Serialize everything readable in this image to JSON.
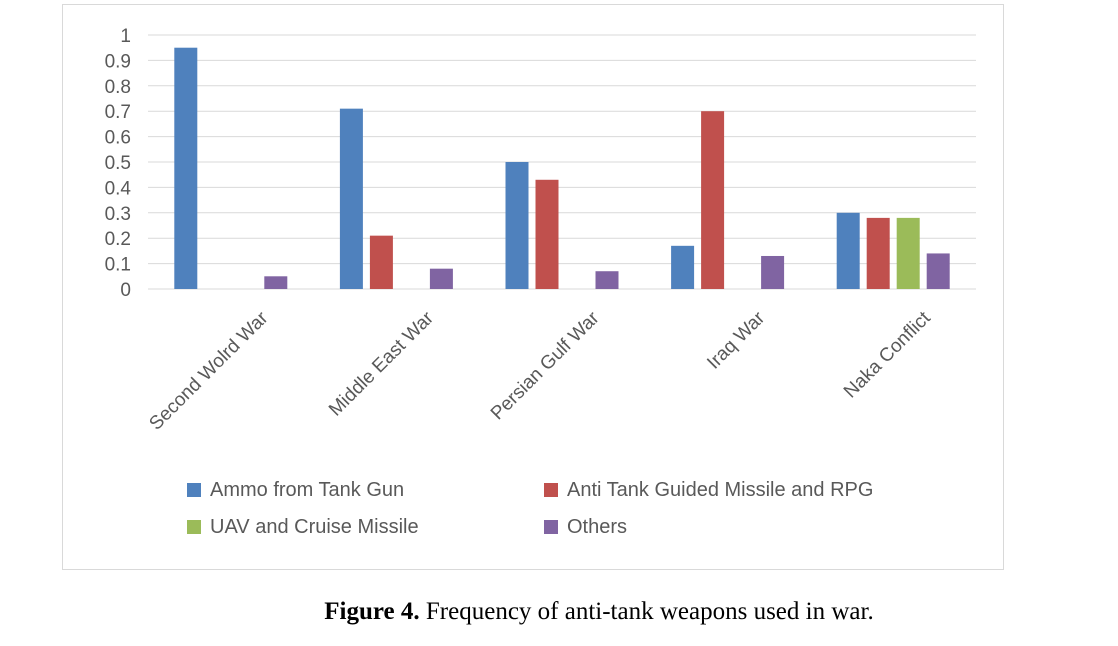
{
  "chart_data": {
    "type": "bar",
    "title": "",
    "xlabel": "",
    "ylabel": "",
    "ylim": [
      0,
      1
    ],
    "yticks": [
      "0",
      "0.1",
      "0.2",
      "0.3",
      "0.4",
      "0.5",
      "0.6",
      "0.7",
      "0.8",
      "0.9",
      "1"
    ],
    "grid": true,
    "legend_position": "bottom",
    "categories": [
      "Second Wolrd War",
      "Middle East War",
      "Persian Gulf War",
      "Iraq War",
      "Naka Conflict"
    ],
    "series": [
      {
        "name": "Ammo from Tank Gun",
        "color": "#4f81bd",
        "values": [
          0.95,
          0.71,
          0.5,
          0.17,
          0.3
        ]
      },
      {
        "name": "Anti Tank Guided Missile and RPG",
        "color": "#c0504d",
        "values": [
          0,
          0.21,
          0.43,
          0.7,
          0.28
        ]
      },
      {
        "name": "UAV and Cruise Missile",
        "color": "#9bbb59",
        "values": [
          0,
          0,
          0,
          0,
          0.28
        ]
      },
      {
        "name": "Others",
        "color": "#8064a2",
        "values": [
          0.05,
          0.08,
          0.07,
          0.13,
          0.14
        ]
      }
    ]
  },
  "caption": {
    "label": "Figure 4.",
    "text": " Frequency of anti-tank weapons used in war."
  }
}
